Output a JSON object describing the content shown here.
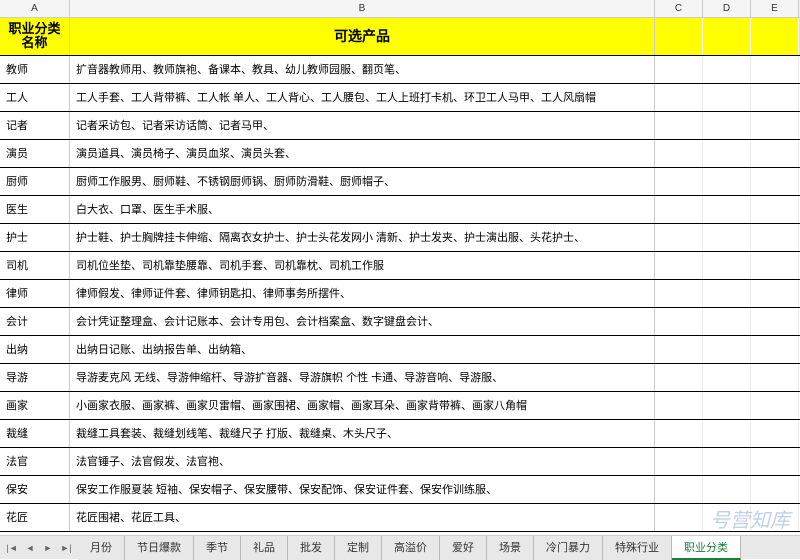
{
  "columns": [
    "A",
    "B",
    "C",
    "D",
    "E"
  ],
  "header": {
    "col_a": "职业分类名称",
    "col_b": "可选产品"
  },
  "rows": [
    {
      "category": "教师",
      "products": "扩音器教师用、教师旗袍、备课本、教具、幼儿教师园服、翻页笔、"
    },
    {
      "category": "工人",
      "products": "工人手套、工人背带裤、工人帐 单人、工人背心、工人腰包、工人上班打卡机、环卫工人马甲、工人风扇帽"
    },
    {
      "category": "记者",
      "products": "记者采访包、记者采访话筒、记者马甲、"
    },
    {
      "category": "演员",
      "products": "演员道具、演员椅子、演员血浆、演员头套、"
    },
    {
      "category": "厨师",
      "products": "厨师工作服男、厨师鞋、不锈钢厨师锅、厨师防滑鞋、厨师帽子、"
    },
    {
      "category": "医生",
      "products": "白大衣、口罩、医生手术服、"
    },
    {
      "category": "护士",
      "products": "护士鞋、护士胸牌挂卡伸缩、隔离衣女护士、护士头花发网小 清新、护士发夹、护士演出服、头花护士、"
    },
    {
      "category": "司机",
      "products": "司机位坐垫、司机靠垫腰靠、司机手套、司机靠枕、司机工作服"
    },
    {
      "category": "律师",
      "products": "律师假发、律师证件套、律师钥匙扣、律师事务所摆件、"
    },
    {
      "category": "会计",
      "products": "会计凭证整理盒、会计记账本、会计专用包、会计档案盒、数字键盘会计、"
    },
    {
      "category": "出纳",
      "products": "出纳日记账、出纳报告单、出纳箱、"
    },
    {
      "category": "导游",
      "products": "导游麦克风 无线、导游伸缩杆、导游扩音器、导游旗帜 个性 卡通、导游音响、导游服、"
    },
    {
      "category": "画家",
      "products": "小画家衣服、画家裤、画家贝雷帽、画家围裙、画家帽、画家耳朵、画家背带裤、画家八角帽"
    },
    {
      "category": "裁缝",
      "products": "裁缝工具套装、裁缝划线笔、裁缝尺子 打版、裁缝桌、木头尺子、"
    },
    {
      "category": "法官",
      "products": "法官锤子、法官假发、法官袍、"
    },
    {
      "category": "保安",
      "products": "保安工作服夏装 短袖、保安帽子、保安腰带、保安配饰、保安证件套、保安作训练服、"
    },
    {
      "category": "花匠",
      "products": "花匠围裙、花匠工具、"
    }
  ],
  "tabs": [
    "月份",
    "节日爆款",
    "季节",
    "礼品",
    "批发",
    "定制",
    "高溢价",
    "爱好",
    "场景",
    "冷门暴力",
    "特殊行业",
    "职业分类"
  ],
  "active_tab": "职业分类",
  "watermark": "号营知库",
  "colors": {
    "header_bg": "#ffff00",
    "border": "#000000",
    "tab_active": "#1a7f37"
  }
}
